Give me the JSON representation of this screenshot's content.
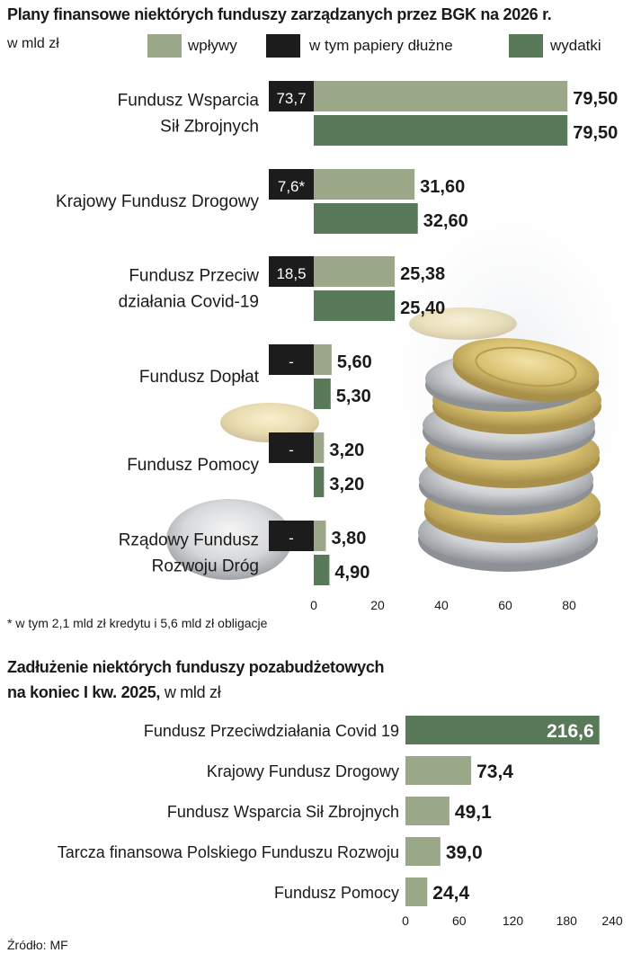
{
  "chart1": {
    "title": "Plany finansowe niektórych funduszy zarządzanych przez BGK na 2026 r.",
    "unit": "w mld zł",
    "legend": [
      "wpływy",
      "w tym papiery dłużne",
      "wydatki"
    ],
    "colors": {
      "inflows": "#9aa889",
      "debt": "#1c1c1c",
      "spending": "#587a58"
    },
    "footnote": "* w tym 2,1 mld zł kredytu i 5,6 mld zł obligacje"
  },
  "chart2": {
    "title_bold_line1": "Zadłużenie niektórych funduszy pozabudżetowych",
    "title_bold_line2": "na koniec I kw. 2025,",
    "title_light": " w mld zł"
  },
  "source": "Źródło: MF",
  "chart_data": [
    {
      "type": "bar",
      "orientation": "horizontal",
      "categories": [
        [
          "Fundusz Wsparcia",
          "Sił Zbrojnych"
        ],
        [
          "Krajowy Fundusz Drogowy"
        ],
        [
          "Fundusz Przeciw",
          "działania Covid-19"
        ],
        [
          "Fundusz Dopłat"
        ],
        [
          "Fundusz Pomocy"
        ],
        [
          "Rządowy Fundusz",
          "Rozwoju Dróg"
        ]
      ],
      "series": [
        {
          "name": "wpływy",
          "values": [
            79.5,
            31.6,
            25.38,
            5.6,
            3.2,
            3.8
          ],
          "labels": [
            "79,50",
            "31,60",
            "25,38",
            "5,60",
            "3,20",
            "3,80"
          ]
        },
        {
          "name": "w tym papiery dłużne",
          "values": [
            73.7,
            7.6,
            18.5,
            null,
            null,
            null
          ],
          "labels": [
            "73,7",
            "7,6*",
            "18,5",
            "-",
            "-",
            "-"
          ]
        },
        {
          "name": "wydatki",
          "values": [
            79.5,
            32.6,
            25.4,
            5.3,
            3.2,
            4.9
          ],
          "labels": [
            "79,50",
            "32,60",
            "25,40",
            "5,30",
            "3,20",
            "4,90"
          ]
        }
      ],
      "xlim": [
        0,
        80
      ],
      "xticks": [
        "0",
        "20",
        "40",
        "60",
        "80"
      ],
      "grid": false
    },
    {
      "type": "bar",
      "orientation": "horizontal",
      "categories": [
        "Fundusz Przeciwdziałania Covid 19",
        "Krajowy Fundusz Drogowy",
        "Fundusz Wsparcia Sił Zbrojnych",
        "Tarcza finansowa Polskiego Funduszu Rozwoju",
        "Fundusz Pomocy"
      ],
      "values": [
        216.6,
        73.4,
        49.1,
        39.0,
        24.4
      ],
      "labels": [
        "216,6",
        "73,4",
        "49,1",
        "39,0",
        "24,4"
      ],
      "highlight_color": "#587a58",
      "bar_color": "#9aa889",
      "xlim": [
        0,
        240
      ],
      "xticks": [
        "0",
        "60",
        "120",
        "180",
        "240"
      ],
      "grid": false
    }
  ]
}
